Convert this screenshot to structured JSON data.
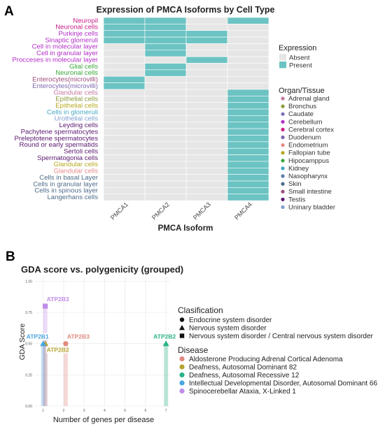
{
  "colors": {
    "absent": "#e6e6e6",
    "present": "#6cc3c3",
    "grid": "#ebebeb",
    "tissues": {
      "Adrenal gland": "#c678a0",
      "Bronchus": "#8c9a3a",
      "Caudate": "#7e6eb8",
      "Cerebellum": "#b22ec6",
      "Cerebral cortex": "#c91e86",
      "Duodenum": "#7d68b0",
      "Endometrium": "#e88a8a",
      "Fallopian tube": "#b8a820",
      "Hipocamppus": "#3aa83a",
      "Kidney": "#44a7c4",
      "Nasopharynx": "#5e7ea8",
      "Skin": "#4c6b88",
      "Small intestine": "#9c4c7a",
      "Testis": "#5a1670",
      "Uninary bladder": "#7ea0d0"
    }
  },
  "chart_data": [
    {
      "type": "heatmap",
      "panel_label": "A",
      "title": "Expression of PMCA Isoforms by Cell Type",
      "xlabel": "PMCA Isoform",
      "ylabel": "",
      "x": [
        "PMCA1",
        "PMCA2",
        "PMCA3",
        "PMCA4"
      ],
      "legend_expression": {
        "title": "Expression",
        "entries": [
          "Absent",
          "Present"
        ]
      },
      "legend_tissue": {
        "title": "Organ/Tissue",
        "entries": [
          "Adrenal gland",
          "Bronchus",
          "Caudate",
          "Cerebellum",
          "Cerebral cortex",
          "Duodenum",
          "Endometrium",
          "Fallopian tube",
          "Hipocamppus",
          "Kidney",
          "Nasopharynx",
          "Skin",
          "Small intestine",
          "Testis",
          "Uninary bladder"
        ]
      },
      "rows": [
        {
          "label": "Neuropil",
          "tissue": "Cerebral cortex",
          "values": [
            1,
            1,
            0,
            1
          ]
        },
        {
          "label": "Neuronal cells",
          "tissue": "Cerebral cortex",
          "values": [
            1,
            1,
            0,
            0
          ]
        },
        {
          "label": "Purkinje cells",
          "tissue": "Cerebellum",
          "values": [
            1,
            1,
            1,
            0
          ]
        },
        {
          "label": "Sinaptic glomeruli",
          "tissue": "Cerebellum",
          "values": [
            1,
            1,
            1,
            0
          ]
        },
        {
          "label": "Cell in molecular layer",
          "tissue": "Cerebellum",
          "values": [
            0,
            1,
            0,
            0
          ]
        },
        {
          "label": "Cell in granular layer",
          "tissue": "Cerebellum",
          "values": [
            0,
            1,
            0,
            0
          ]
        },
        {
          "label": "Procceses in molecular layer",
          "tissue": "Cerebellum",
          "values": [
            0,
            0,
            1,
            0
          ]
        },
        {
          "label": "Glial cells",
          "tissue": "Hipocamppus",
          "values": [
            0,
            1,
            0,
            0
          ]
        },
        {
          "label": "Neuronal cells",
          "tissue": "Hipocamppus",
          "values": [
            0,
            1,
            0,
            0
          ]
        },
        {
          "label": "Enterocytes(microvilli)",
          "tissue": "Small intestine",
          "values": [
            1,
            0,
            0,
            0
          ]
        },
        {
          "label": "Enterocytes(microvilli)",
          "tissue": "Duodenum",
          "values": [
            1,
            0,
            0,
            0
          ]
        },
        {
          "label": "Glandular cells",
          "tissue": "Adrenal gland",
          "values": [
            0,
            0,
            0,
            1
          ]
        },
        {
          "label": "Epithelial cells",
          "tissue": "Bronchus",
          "values": [
            0,
            0,
            0,
            1
          ]
        },
        {
          "label": "Epithelial cells",
          "tissue": "Fallopian tube",
          "values": [
            0,
            0,
            0,
            1
          ]
        },
        {
          "label": "Cells in glomeruli",
          "tissue": "Kidney",
          "values": [
            0,
            0,
            0,
            1
          ]
        },
        {
          "label": "Urothelial cells",
          "tissue": "Uninary bladder",
          "values": [
            0,
            0,
            0,
            1
          ]
        },
        {
          "label": "Leyding cells",
          "tissue": "Testis",
          "values": [
            0,
            0,
            0,
            1
          ]
        },
        {
          "label": "Pachytene spermatocytes",
          "tissue": "Testis",
          "values": [
            0,
            0,
            0,
            1
          ]
        },
        {
          "label": "Preleptotene spermatocytes",
          "tissue": "Testis",
          "values": [
            0,
            0,
            0,
            1
          ]
        },
        {
          "label": "Round or early spermatids",
          "tissue": "Testis",
          "values": [
            0,
            0,
            0,
            1
          ]
        },
        {
          "label": "Sertoli cells",
          "tissue": "Testis",
          "values": [
            0,
            0,
            0,
            1
          ]
        },
        {
          "label": "Spermatogonia cells",
          "tissue": "Testis",
          "values": [
            0,
            0,
            0,
            1
          ]
        },
        {
          "label": "Glandular cells",
          "tissue": "Fallopian tube",
          "values": [
            0,
            0,
            0,
            1
          ]
        },
        {
          "label": "Glandular cells",
          "tissue": "Endometrium",
          "values": [
            0,
            0,
            0,
            1
          ]
        },
        {
          "label": "Cells in basal Layer",
          "tissue": "Skin",
          "values": [
            0,
            0,
            0,
            1
          ]
        },
        {
          "label": "Cells in granular layer",
          "tissue": "Skin",
          "values": [
            0,
            0,
            0,
            1
          ]
        },
        {
          "label": "Cells in spinous layer",
          "tissue": "Skin",
          "values": [
            0,
            0,
            0,
            1
          ]
        },
        {
          "label": "Langerhans cells",
          "tissue": "Skin",
          "values": [
            0,
            0,
            0,
            1
          ]
        }
      ]
    },
    {
      "type": "scatter",
      "panel_label": "B",
      "title": "GDA score vs. polygenicity (grouped)",
      "xlabel": "Number of genes per disease",
      "ylabel": "GDA Score",
      "xlim": [
        0.6,
        7.2
      ],
      "ylim": [
        0,
        1.03
      ],
      "xticks": [
        1,
        2,
        3,
        4,
        5,
        6,
        7
      ],
      "yticks": [
        0,
        0.25,
        0.5,
        0.75,
        1
      ],
      "ytick_labels": [
        "0.00",
        "0.25",
        "0.50",
        "0.75",
        "1.00"
      ],
      "legend_classification": {
        "title": "Clasification",
        "entries": [
          {
            "label": "Endocrine system disorder",
            "shape": "circle"
          },
          {
            "label": "Nervous system disorder",
            "shape": "triangle"
          },
          {
            "label": "Nervous system disorder / Central nervous system disorder",
            "shape": "square"
          }
        ]
      },
      "legend_disease": {
        "title": "Disease",
        "entries": [
          {
            "label": "Aldosterone Producing Adrenal Cortical Adenoma",
            "color": "#e08a7e"
          },
          {
            "label": "Deafness, Autosomal Dominant 82",
            "color": "#b5a534"
          },
          {
            "label": "Deafness, Autosomal Recessive 12",
            "color": "#2bb38a"
          },
          {
            "label": "Intellectual Developmental Disorder, Autosomal Dominant 66",
            "color": "#4aa6e0"
          },
          {
            "label": "Spinocerebellar Ataxia, X-Linked 1",
            "color": "#c08ce8"
          }
        ]
      },
      "points": [
        {
          "label": "ATP2B3",
          "x": 2.1,
          "y": 0.5,
          "shape": "circle",
          "color": "#e08a7e"
        },
        {
          "label": "ATP2B2",
          "x": 1.1,
          "y": 0.5,
          "shape": "triangle",
          "color": "#b5a534"
        },
        {
          "label": "ATP2B2",
          "x": 7,
          "y": 0.5,
          "shape": "triangle",
          "color": "#2bb38a"
        },
        {
          "label": "ATP2B1",
          "x": 1,
          "y": 0.5,
          "shape": "triangle",
          "color": "#4aa6e0"
        },
        {
          "label": "ATP2B3",
          "x": 1.1,
          "y": 0.8,
          "shape": "square",
          "color": "#c08ce8"
        }
      ]
    }
  ]
}
